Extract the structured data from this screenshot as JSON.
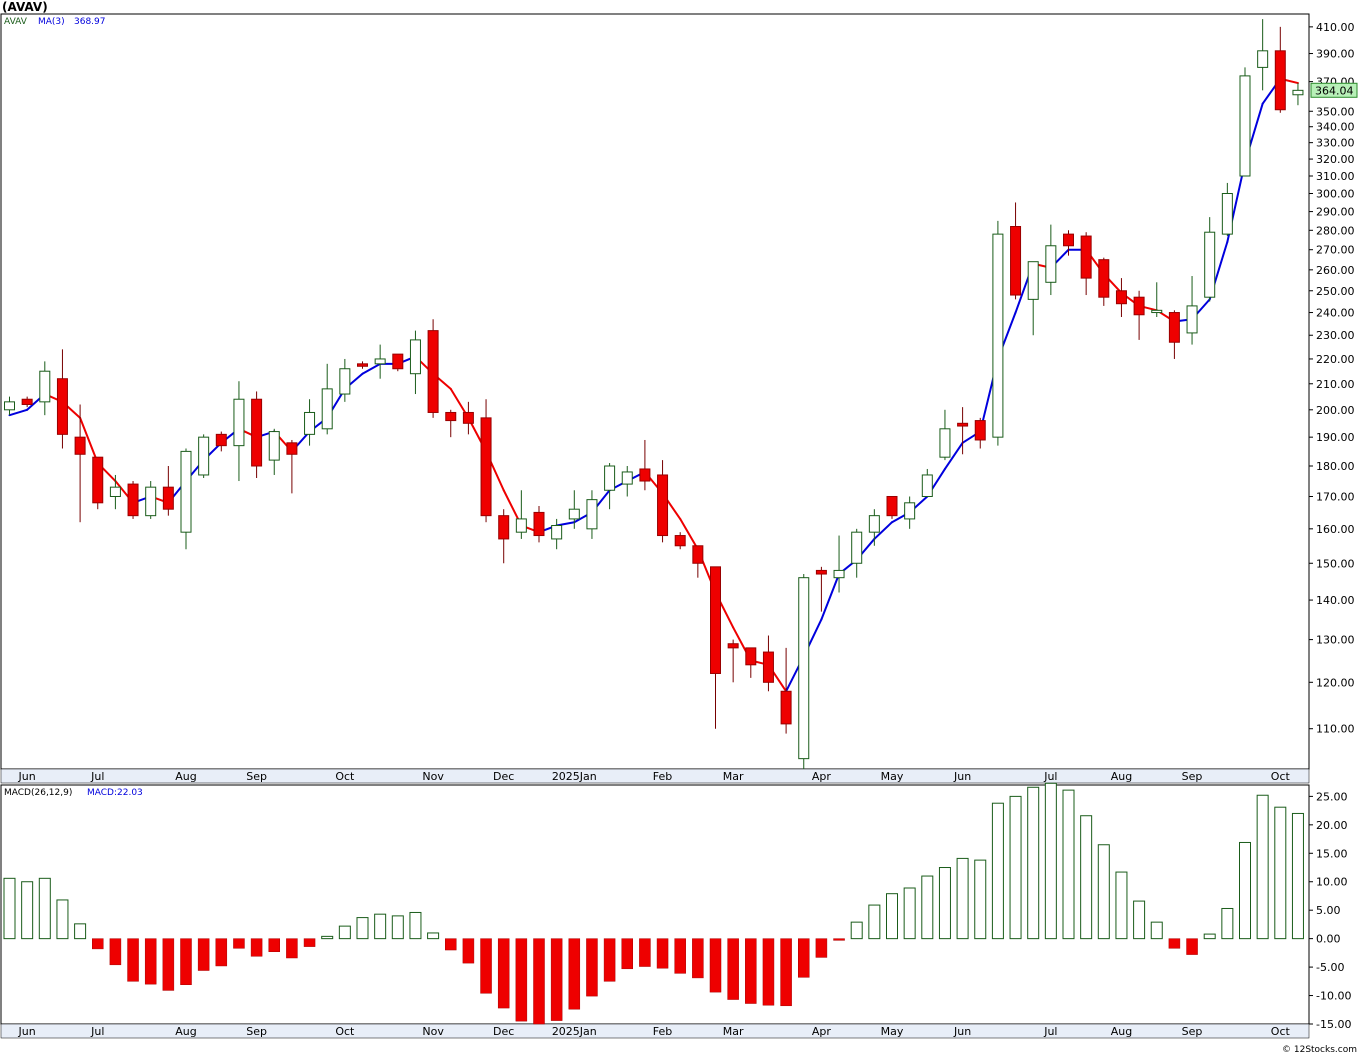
{
  "symbol_title": "(AVAV)",
  "footer": "© 12Stocks.com",
  "colors": {
    "up": "#1a5c1a",
    "down": "#ee0000",
    "ma_up": "#0000dd",
    "ma_down": "#ee0000",
    "grid": "#c8c8c8",
    "price_label_bg": "#b8f0b8"
  },
  "chart_data": [
    {
      "type": "candlestick",
      "legend": {
        "symbol": "AVAV",
        "indicator": "MA(3)",
        "value": "368.97"
      },
      "scale": "log",
      "ylim": [
        102,
        420
      ],
      "y_ticks": [
        "410.00",
        "390.00",
        "370.00",
        "350.00",
        "340.00",
        "330.00",
        "320.00",
        "310.00",
        "300.00",
        "290.00",
        "280.00",
        "270.00",
        "260.00",
        "250.00",
        "240.00",
        "230.00",
        "220.00",
        "210.00",
        "200.00",
        "190.00",
        "180.00",
        "170.00",
        "160.00",
        "150.00",
        "140.00",
        "130.00",
        "120.00",
        "110.00"
      ],
      "last_price": "364.04",
      "x_labels": [
        "Jun",
        "Jul",
        "Aug",
        "Sep",
        "Oct",
        "Nov",
        "Dec",
        "2025Jan",
        "Feb",
        "Mar",
        "Apr",
        "May",
        "Jun",
        "Jul",
        "Aug",
        "Sep",
        "Oct"
      ],
      "label_weeks": [
        1,
        5,
        10,
        14,
        19,
        24,
        28,
        32,
        37,
        41,
        46,
        50,
        54,
        59,
        63,
        67,
        72
      ],
      "candles": [
        {
          "o": 200,
          "h": 205,
          "l": 198,
          "c": 203
        },
        {
          "o": 204,
          "h": 205,
          "l": 201,
          "c": 202
        },
        {
          "o": 203,
          "h": 219,
          "l": 198,
          "c": 215
        },
        {
          "o": 212,
          "h": 224,
          "l": 186,
          "c": 191
        },
        {
          "o": 190,
          "h": 202,
          "l": 162,
          "c": 184
        },
        {
          "o": 183,
          "h": 183,
          "l": 166,
          "c": 168
        },
        {
          "o": 170,
          "h": 177,
          "l": 166,
          "c": 173
        },
        {
          "o": 174,
          "h": 175,
          "l": 163,
          "c": 164
        },
        {
          "o": 164,
          "h": 175,
          "l": 163,
          "c": 173
        },
        {
          "o": 173,
          "h": 180,
          "l": 164,
          "c": 166
        },
        {
          "o": 159,
          "h": 186,
          "l": 154,
          "c": 185
        },
        {
          "o": 177,
          "h": 191,
          "l": 176,
          "c": 190
        },
        {
          "o": 191,
          "h": 192,
          "l": 185,
          "c": 187
        },
        {
          "o": 187,
          "h": 211,
          "l": 175,
          "c": 204
        },
        {
          "o": 204,
          "h": 207,
          "l": 176,
          "c": 180
        },
        {
          "o": 182,
          "h": 193,
          "l": 177,
          "c": 192
        },
        {
          "o": 188,
          "h": 189,
          "l": 171,
          "c": 184
        },
        {
          "o": 191,
          "h": 204,
          "l": 187,
          "c": 199
        },
        {
          "o": 193,
          "h": 218,
          "l": 191,
          "c": 208
        },
        {
          "o": 206,
          "h": 220,
          "l": 203,
          "c": 216
        },
        {
          "o": 218,
          "h": 219,
          "l": 216,
          "c": 217
        },
        {
          "o": 218,
          "h": 226,
          "l": 212,
          "c": 220
        },
        {
          "o": 222,
          "h": 222,
          "l": 215,
          "c": 216
        },
        {
          "o": 214,
          "h": 232,
          "l": 206,
          "c": 228
        },
        {
          "o": 232,
          "h": 237,
          "l": 197,
          "c": 199
        },
        {
          "o": 199,
          "h": 200,
          "l": 190,
          "c": 196
        },
        {
          "o": 199,
          "h": 203,
          "l": 191,
          "c": 195
        },
        {
          "o": 197,
          "h": 204,
          "l": 162,
          "c": 164
        },
        {
          "o": 164,
          "h": 166,
          "l": 150,
          "c": 157
        },
        {
          "o": 159,
          "h": 172,
          "l": 157,
          "c": 163
        },
        {
          "o": 165,
          "h": 167,
          "l": 156,
          "c": 158
        },
        {
          "o": 157,
          "h": 163,
          "l": 154,
          "c": 161
        },
        {
          "o": 163,
          "h": 172,
          "l": 160,
          "c": 166
        },
        {
          "o": 160,
          "h": 172,
          "l": 157,
          "c": 169
        },
        {
          "o": 172,
          "h": 181,
          "l": 166,
          "c": 180
        },
        {
          "o": 174,
          "h": 180,
          "l": 170,
          "c": 178
        },
        {
          "o": 179,
          "h": 189,
          "l": 172,
          "c": 175
        },
        {
          "o": 177,
          "h": 182,
          "l": 156,
          "c": 158
        },
        {
          "o": 158,
          "h": 159,
          "l": 154,
          "c": 155
        },
        {
          "o": 155,
          "h": 155,
          "l": 146,
          "c": 150
        },
        {
          "o": 149,
          "h": 149,
          "l": 110,
          "c": 122
        },
        {
          "o": 129,
          "h": 130,
          "l": 120,
          "c": 128
        },
        {
          "o": 128,
          "h": 128,
          "l": 121,
          "c": 124
        },
        {
          "o": 127,
          "h": 131,
          "l": 118,
          "c": 120
        },
        {
          "o": 118,
          "h": 128,
          "l": 109,
          "c": 111
        },
        {
          "o": 104,
          "h": 147,
          "l": 102,
          "c": 146
        },
        {
          "o": 148,
          "h": 149,
          "l": 137,
          "c": 147
        },
        {
          "o": 146,
          "h": 158,
          "l": 142,
          "c": 148
        },
        {
          "o": 150,
          "h": 160,
          "l": 146,
          "c": 159
        },
        {
          "o": 159,
          "h": 166,
          "l": 155,
          "c": 164
        },
        {
          "o": 170,
          "h": 170,
          "l": 163,
          "c": 164
        },
        {
          "o": 163,
          "h": 170,
          "l": 160,
          "c": 168
        },
        {
          "o": 170,
          "h": 179,
          "l": 170,
          "c": 177
        },
        {
          "o": 183,
          "h": 200,
          "l": 182,
          "c": 193
        },
        {
          "o": 195,
          "h": 201,
          "l": 184,
          "c": 194
        },
        {
          "o": 196,
          "h": 197,
          "l": 186,
          "c": 189
        },
        {
          "o": 190,
          "h": 285,
          "l": 187,
          "c": 278
        },
        {
          "o": 282,
          "h": 295,
          "l": 246,
          "c": 248
        },
        {
          "o": 246,
          "h": 264,
          "l": 230,
          "c": 264
        },
        {
          "o": 254,
          "h": 283,
          "l": 248,
          "c": 272
        },
        {
          "o": 278,
          "h": 280,
          "l": 267,
          "c": 272
        },
        {
          "o": 277,
          "h": 279,
          "l": 248,
          "c": 256
        },
        {
          "o": 265,
          "h": 266,
          "l": 243,
          "c": 247
        },
        {
          "o": 250,
          "h": 256,
          "l": 238,
          "c": 244
        },
        {
          "o": 247,
          "h": 250,
          "l": 228,
          "c": 239
        },
        {
          "o": 240,
          "h": 254,
          "l": 238,
          "c": 241
        },
        {
          "o": 240,
          "h": 241,
          "l": 220,
          "c": 227
        },
        {
          "o": 231,
          "h": 257,
          "l": 226,
          "c": 243
        },
        {
          "o": 247,
          "h": 287,
          "l": 245,
          "c": 279
        },
        {
          "o": 278,
          "h": 306,
          "l": 277,
          "c": 300
        },
        {
          "o": 310,
          "h": 380,
          "l": 310,
          "c": 374
        },
        {
          "o": 380,
          "h": 416,
          "l": 364,
          "c": 392
        },
        {
          "o": 392,
          "h": 410,
          "l": 349,
          "c": 351
        },
        {
          "o": 361,
          "h": 369,
          "l": 354,
          "c": 364
        }
      ],
      "ma": [
        198,
        200,
        206,
        203,
        197,
        181,
        175,
        168,
        170,
        168,
        175,
        182,
        188,
        193,
        190,
        192,
        185,
        192,
        197,
        208,
        214,
        218,
        218,
        221,
        214,
        208,
        197,
        185,
        172,
        161,
        159,
        161,
        162,
        165,
        172,
        175,
        178,
        171,
        163,
        154,
        142,
        133,
        125,
        124,
        118,
        126,
        135,
        147,
        151,
        157,
        162,
        165,
        170,
        179,
        188,
        192,
        220,
        240,
        263,
        261,
        270,
        270,
        258,
        249,
        243,
        241,
        236,
        237,
        246,
        274,
        318,
        355,
        372,
        369
      ]
    },
    {
      "type": "bar",
      "legend": {
        "indicator": "MACD(26,12,9)",
        "label": "MACD:22.03"
      },
      "ylim": [
        -15,
        27
      ],
      "y_ticks": [
        "25.00",
        "20.00",
        "15.00",
        "10.00",
        "5.00",
        "0.00",
        "-5.00",
        "-10.00",
        "-15.00"
      ],
      "x_labels": [
        "Jun",
        "Jul",
        "Aug",
        "Sep",
        "Oct",
        "Nov",
        "Dec",
        "2025Jan",
        "Feb",
        "Mar",
        "Apr",
        "May",
        "Jun",
        "Jul",
        "Aug",
        "Sep",
        "Oct"
      ],
      "values": [
        10.6,
        10.0,
        10.6,
        6.8,
        2.6,
        -1.8,
        -4.6,
        -7.5,
        -8.0,
        -9.1,
        -8.1,
        -5.6,
        -4.8,
        -1.7,
        -3.1,
        -2.3,
        -3.4,
        -1.4,
        0.4,
        2.2,
        3.7,
        4.3,
        4.0,
        4.6,
        1.0,
        -2.0,
        -4.3,
        -9.6,
        -12.2,
        -14.5,
        -15.0,
        -14.4,
        -12.4,
        -10.1,
        -7.5,
        -5.3,
        -4.9,
        -5.2,
        -6.1,
        -6.9,
        -9.4,
        -10.7,
        -11.4,
        -11.7,
        -11.8,
        -6.8,
        -3.3,
        -0.3,
        2.9,
        5.9,
        7.9,
        8.9,
        11.0,
        12.5,
        14.1,
        13.8,
        23.8,
        25.0,
        26.6,
        27.3,
        26.1,
        21.6,
        16.5,
        11.7,
        6.6,
        2.9,
        -1.7,
        -2.8,
        0.8,
        5.3,
        16.9,
        25.2,
        23.1,
        22.0
      ]
    }
  ]
}
